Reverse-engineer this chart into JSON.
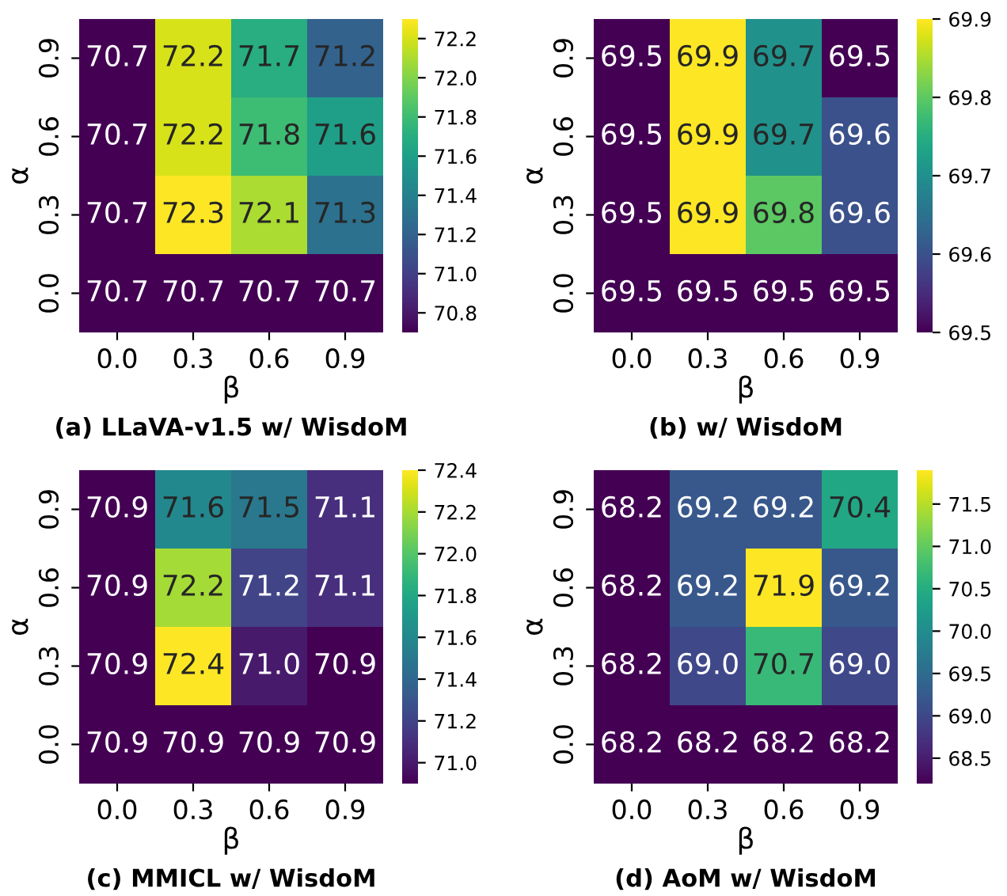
{
  "chart_data": [
    {
      "type": "heatmap",
      "title": "(a) LLaVA-v1.5 w/ WisdoM",
      "xlabel": "β",
      "ylabel": "α",
      "categories": [
        "0.0",
        "0.3",
        "0.6",
        "0.9"
      ],
      "y_categories": [
        "0.9",
        "0.6",
        "0.3",
        "0.0"
      ],
      "cells": [
        [
          70.7,
          72.2,
          71.7,
          71.2
        ],
        [
          70.7,
          72.2,
          71.8,
          71.6
        ],
        [
          70.7,
          72.3,
          72.1,
          71.3
        ],
        [
          70.7,
          70.7,
          70.7,
          70.7
        ]
      ],
      "data_labels": true,
      "clim": [
        70.7,
        72.3
      ],
      "cticks": [
        70.8,
        {
          "value": 71.0,
          "label": "71.0"
        },
        71.2,
        71.4,
        71.6,
        71.8,
        {
          "value": 72.0,
          "label": "72.0"
        },
        72.2
      ]
    },
    {
      "type": "heatmap",
      "title": "(b) w/ WisdoM",
      "xlabel": "β",
      "ylabel": "α",
      "categories": [
        "0.0",
        "0.3",
        "0.6",
        "0.9"
      ],
      "y_categories": [
        "0.9",
        "0.6",
        "0.3",
        "0.0"
      ],
      "cells": [
        [
          69.5,
          69.9,
          69.7,
          69.5
        ],
        [
          69.5,
          69.9,
          69.7,
          69.6
        ],
        [
          69.5,
          69.9,
          69.8,
          69.6
        ],
        [
          69.5,
          69.5,
          69.5,
          69.5
        ]
      ],
      "data_labels": true,
      "clim": [
        69.5,
        69.9
      ],
      "cticks": [
        69.5,
        69.6,
        69.7,
        69.8,
        69.9
      ]
    },
    {
      "type": "heatmap",
      "title": "(c) MMICL w/ WisdoM",
      "xlabel": "β",
      "ylabel": "α",
      "categories": [
        "0.0",
        "0.3",
        "0.6",
        "0.9"
      ],
      "y_categories": [
        "0.9",
        "0.6",
        "0.3",
        "0.0"
      ],
      "cells": [
        [
          70.9,
          71.6,
          71.5,
          71.1
        ],
        [
          70.9,
          72.2,
          71.2,
          71.1
        ],
        [
          70.9,
          72.4,
          71.0,
          70.9
        ],
        [
          70.9,
          70.9,
          70.9,
          70.9
        ]
      ],
      "cell_labels": [
        [
          "70.9",
          "71.6",
          "71.5",
          "71.1"
        ],
        [
          "70.9",
          "72.2",
          "71.2",
          "71.1"
        ],
        [
          "70.9",
          "72.4",
          "71.0",
          "70.9"
        ],
        [
          "70.9",
          "70.9",
          "70.9",
          "70.9"
        ]
      ],
      "data_labels": true,
      "clim": [
        70.9,
        72.4
      ],
      "cticks": [
        {
          "value": 71.0,
          "label": "71.0"
        },
        71.2,
        71.4,
        71.6,
        71.8,
        {
          "value": 72.0,
          "label": "72.0"
        },
        72.2,
        72.4
      ]
    },
    {
      "type": "heatmap",
      "title": "(d) AoM w/ WisdoM",
      "xlabel": "β",
      "ylabel": "α",
      "categories": [
        "0.0",
        "0.3",
        "0.6",
        "0.9"
      ],
      "y_categories": [
        "0.9",
        "0.6",
        "0.3",
        "0.0"
      ],
      "cells": [
        [
          68.2,
          69.2,
          69.2,
          70.4
        ],
        [
          68.2,
          69.2,
          71.9,
          69.2
        ],
        [
          68.2,
          69.0,
          70.7,
          69.0
        ],
        [
          68.2,
          68.2,
          68.2,
          68.2
        ]
      ],
      "cell_labels": [
        [
          "68.2",
          "69.2",
          "69.2",
          "70.4"
        ],
        [
          "68.2",
          "69.2",
          "71.9",
          "69.2"
        ],
        [
          "68.2",
          "69.0",
          "70.7",
          "69.0"
        ],
        [
          "68.2",
          "68.2",
          "68.2",
          "68.2"
        ]
      ],
      "data_labels": true,
      "clim": [
        68.2,
        71.9
      ],
      "cticks": [
        68.5,
        {
          "value": 69.0,
          "label": "69.0"
        },
        69.5,
        {
          "value": 70.0,
          "label": "70.0"
        },
        70.5,
        {
          "value": 71.0,
          "label": "71.0"
        },
        71.5
      ]
    }
  ]
}
